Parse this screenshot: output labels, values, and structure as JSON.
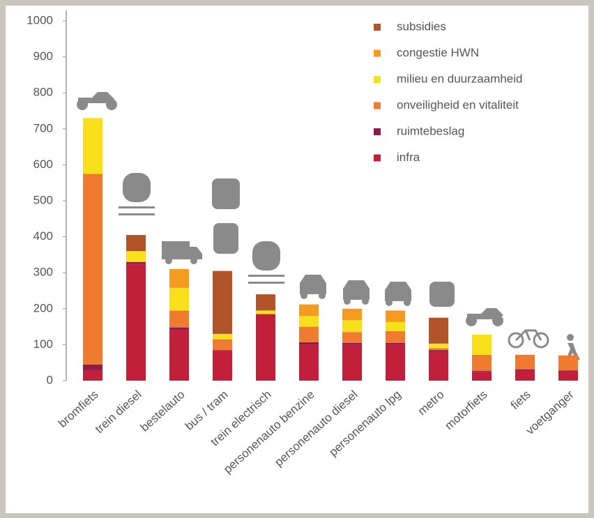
{
  "chart_data": {
    "type": "stacked_bar",
    "categories": [
      "bromfiets",
      "trein diesel",
      "bestelauto",
      "bus / tram",
      "trein electrisch",
      "personenauto benzine",
      "personenauto diesel",
      "personenauto lpg",
      "metro",
      "motorfiets",
      "fiets",
      "voetganger"
    ],
    "series": [
      {
        "name": "infra",
        "color": "#c21f3a",
        "values": [
          30,
          325,
          140,
          85,
          185,
          100,
          100,
          100,
          80,
          25,
          28,
          25
        ]
      },
      {
        "name": "ruimtebeslag",
        "color": "#8c1a4b",
        "values": [
          15,
          5,
          8,
          0,
          0,
          7,
          5,
          5,
          5,
          2,
          3,
          3
        ]
      },
      {
        "name": "onveiligheid en vitaliteit",
        "color": "#ef7b30",
        "values": [
          530,
          0,
          47,
          30,
          0,
          43,
          30,
          33,
          5,
          45,
          41,
          42
        ]
      },
      {
        "name": "milieu en duurzaamheid",
        "color": "#f8e11a",
        "values": [
          155,
          30,
          63,
          15,
          10,
          30,
          33,
          25,
          13,
          56,
          0,
          0
        ]
      },
      {
        "name": "congestie HWN",
        "color": "#f59b1f",
        "values": [
          0,
          0,
          52,
          0,
          0,
          32,
          32,
          32,
          0,
          0,
          0,
          0
        ]
      },
      {
        "name": "subsidies",
        "color": "#b2542a",
        "values": [
          0,
          45,
          0,
          175,
          45,
          0,
          0,
          0,
          72,
          0,
          0,
          0
        ]
      }
    ],
    "ylim": [
      0,
      1000
    ],
    "yticks": [
      0,
      100,
      200,
      300,
      400,
      500,
      600,
      700,
      800,
      900,
      1000
    ],
    "legend": "top-right"
  }
}
